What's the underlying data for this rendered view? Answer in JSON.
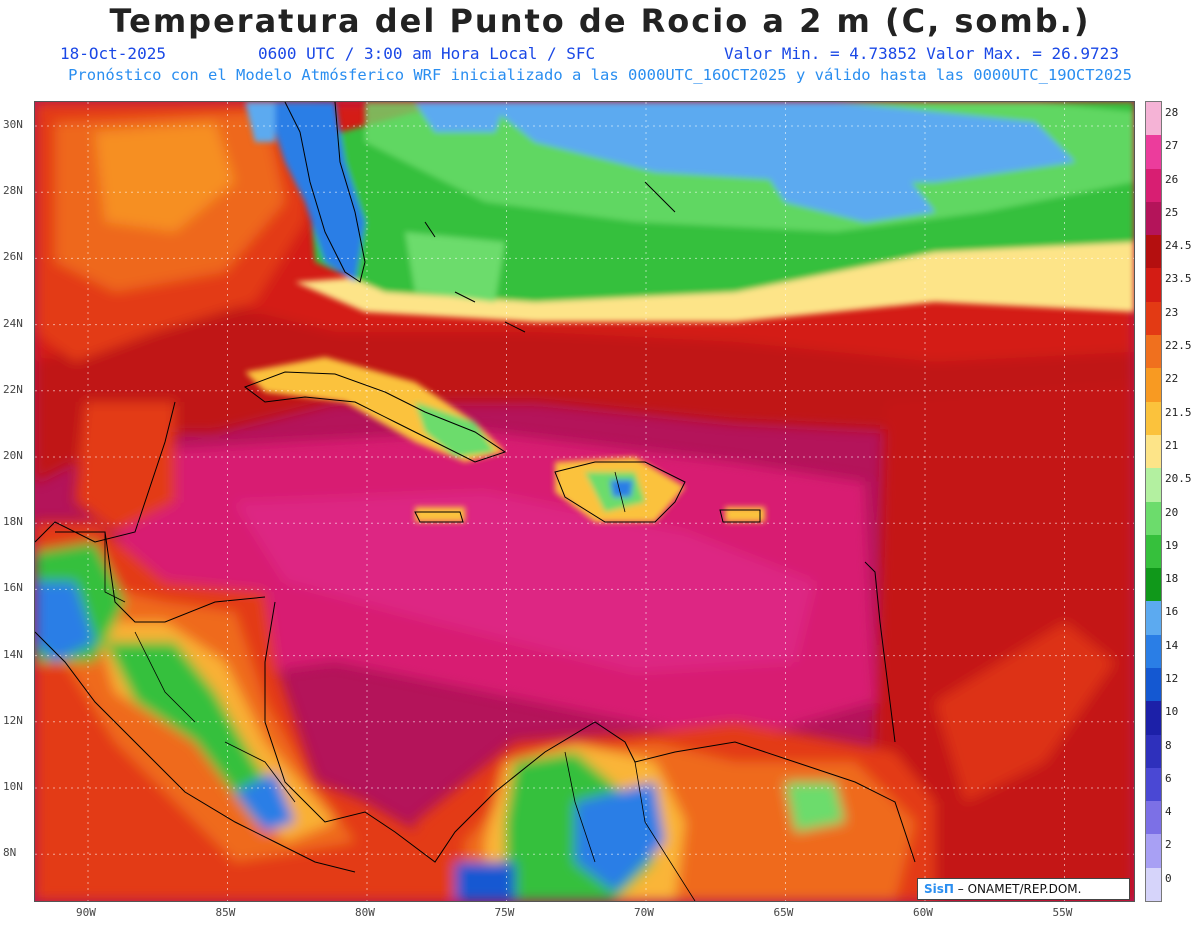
{
  "title": "Temperatura del Punto de Rocio a 2 m (C, somb.)",
  "subtitle": {
    "date": "18-Oct-2025",
    "time": "0600 UTC / 3:00 am Hora Local / SFC",
    "min_max": "Valor Min. = 4.73852  Valor Max. = 26.9723",
    "model_info": "Pronóstico con el Modelo Atmósferico WRF inicializado a las 0000UTC_16OCT2025 y válido hasta las  0000UTC_19OCT2025"
  },
  "map": {
    "lat_labels": [
      "30N",
      "28N",
      "26N",
      "24N",
      "22N",
      "20N",
      "18N",
      "16N",
      "14N",
      "12N",
      "10N",
      "8N"
    ],
    "lon_labels": [
      "90W",
      "85W",
      "80W",
      "75W",
      "70W",
      "65W",
      "60W",
      "55W"
    ]
  },
  "colorbar": {
    "labels": [
      "28",
      "27",
      "26",
      "25",
      "24.5",
      "23.5",
      "23",
      "22.5",
      "22",
      "21.5",
      "21",
      "20.5",
      "20",
      "19",
      "18",
      "16",
      "14",
      "12",
      "10",
      "8",
      "6",
      "4",
      "2",
      "0"
    ],
    "colors": [
      "#f5b3d6",
      "#ec3c9c",
      "#d81e72",
      "#b4145a",
      "#b40f0f",
      "#d41c14",
      "#e33a14",
      "#f0701e",
      "#f89a22",
      "#fbc23c",
      "#fde488",
      "#b3f0a0",
      "#6cdc6c",
      "#36c03c",
      "#10981a",
      "#5caaf0",
      "#2a7ee6",
      "#1458d2",
      "#1c20a8",
      "#2e30bc",
      "#4a48d4",
      "#7c70e6",
      "#a8a0f4",
      "#d6d4fa"
    ]
  },
  "credit": {
    "logo": "SisΠ",
    "text": " – ONAMET/REP.DOM."
  }
}
